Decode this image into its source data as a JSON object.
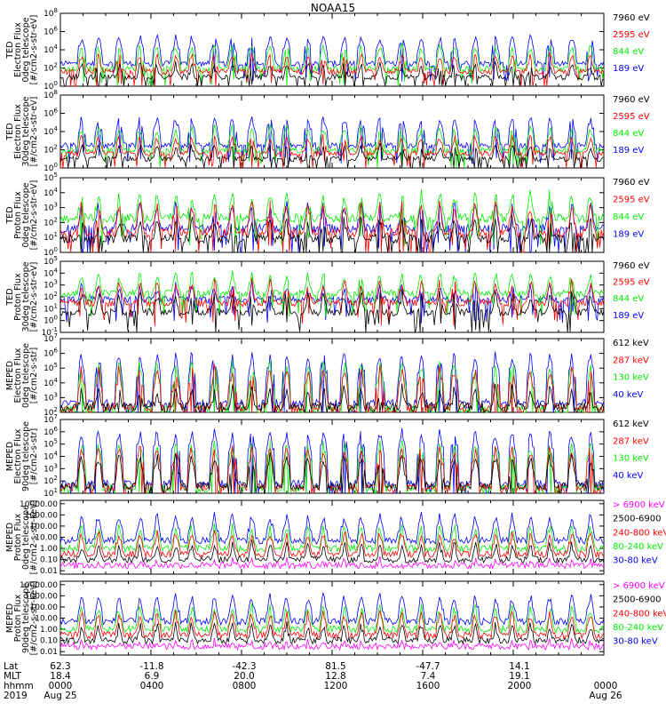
{
  "title": "NOAA15",
  "colors": {
    "black": "#000000",
    "red": "#ff0000",
    "green": "#00ee00",
    "blue": "#0000ff",
    "magenta": "#ff00ff"
  },
  "chart_data": [
    {
      "type": "line",
      "scale": "log",
      "ylabel": [
        "TED",
        "Electron Flux",
        "0deg telescope",
        "[#/cm2-s-str-eV]"
      ],
      "yticks": [
        {
          "v": 1,
          "label": "10^0"
        },
        {
          "v": 100,
          "label": "10^2"
        },
        {
          "v": 10000,
          "label": "10^4"
        },
        {
          "v": 1000000,
          "label": "10^6"
        },
        {
          "v": 100000000,
          "label": "10^8"
        }
      ],
      "ylim": [
        1,
        100000000
      ],
      "series": [
        {
          "name": "7960 eV",
          "color": "black",
          "base": 10,
          "peak": 300
        },
        {
          "name": "2595 eV",
          "color": "red",
          "base": 40,
          "peak": 3000
        },
        {
          "name": "844 eV",
          "color": "green",
          "base": 80,
          "peak": 30000
        },
        {
          "name": "189 eV",
          "color": "blue",
          "base": 300,
          "peak": 300000
        }
      ]
    },
    {
      "type": "line",
      "scale": "log",
      "ylabel": [
        "TED",
        "Electron Flux",
        "30deg telescope",
        "[#/cm2-s-str-eV]"
      ],
      "yticks": [
        {
          "v": 1,
          "label": "10^0"
        },
        {
          "v": 100,
          "label": "10^2"
        },
        {
          "v": 10000,
          "label": "10^4"
        },
        {
          "v": 1000000,
          "label": "10^6"
        },
        {
          "v": 100000000,
          "label": "10^8"
        }
      ],
      "ylim": [
        1,
        100000000
      ],
      "series": [
        {
          "name": "7960 eV",
          "color": "black",
          "base": 10,
          "peak": 300
        },
        {
          "name": "2595 eV",
          "color": "red",
          "base": 40,
          "peak": 3000
        },
        {
          "name": "844 eV",
          "color": "green",
          "base": 80,
          "peak": 30000
        },
        {
          "name": "189 eV",
          "color": "blue",
          "base": 300,
          "peak": 300000
        }
      ]
    },
    {
      "type": "line",
      "scale": "log",
      "ylabel": [
        "TED",
        "Proton Flux",
        "0deg telescope",
        "[#/cm2-s-str-eV]"
      ],
      "yticks": [
        {
          "v": 1,
          "label": "10^0"
        },
        {
          "v": 10,
          "label": "10^1"
        },
        {
          "v": 100,
          "label": "10^2"
        },
        {
          "v": 1000,
          "label": "10^3"
        },
        {
          "v": 10000,
          "label": "10^4"
        },
        {
          "v": 100000,
          "label": "10^5"
        }
      ],
      "ylim": [
        1,
        100000
      ],
      "series": [
        {
          "name": "7960 eV",
          "color": "black",
          "base": 8,
          "peak": 200
        },
        {
          "name": "2595 eV",
          "color": "red",
          "base": 20,
          "peak": 2000
        },
        {
          "name": "844 eV",
          "color": "green",
          "base": 200,
          "peak": 10000
        },
        {
          "name": "189 eV",
          "color": "blue",
          "base": 40,
          "peak": 2000
        }
      ]
    },
    {
      "type": "line",
      "scale": "log",
      "ylabel": [
        "TED",
        "Proton Flux",
        "30deg telescope",
        "[#/cm2-s-str-eV]"
      ],
      "yticks": [
        {
          "v": 0.1,
          "label": "10^-1"
        },
        {
          "v": 1,
          "label": "10^0"
        },
        {
          "v": 10,
          "label": "10^1"
        },
        {
          "v": 100,
          "label": "10^2"
        },
        {
          "v": 1000,
          "label": "10^3"
        },
        {
          "v": 10000,
          "label": "10^4"
        },
        {
          "v": 100000,
          "label": "10^5"
        }
      ],
      "ylim": [
        0.1,
        100000
      ],
      "series": [
        {
          "name": "7960 eV",
          "color": "black",
          "base": 5,
          "peak": 200
        },
        {
          "name": "2595 eV",
          "color": "red",
          "base": 30,
          "peak": 2000
        },
        {
          "name": "844 eV",
          "color": "green",
          "base": 200,
          "peak": 10000
        },
        {
          "name": "189 eV",
          "color": "blue",
          "base": 60,
          "peak": 1000
        }
      ]
    },
    {
      "type": "line",
      "scale": "log",
      "ylabel": [
        "MEPED",
        "Electron Flux",
        "0deg telescope",
        "[#/cm2-s-str]"
      ],
      "yticks": [
        {
          "v": 100,
          "label": "10^2"
        },
        {
          "v": 1000,
          "label": "10^3"
        },
        {
          "v": 10000,
          "label": "10^4"
        },
        {
          "v": 100000,
          "label": "10^5"
        },
        {
          "v": 1000000,
          "label": "10^6"
        },
        {
          "v": 10000000,
          "label": "10^7"
        }
      ],
      "ylim": [
        100,
        10000000
      ],
      "series": [
        {
          "name": "612 keV",
          "color": "black",
          "base": 250,
          "peak": 5000
        },
        {
          "name": "287 keV",
          "color": "red",
          "base": 200,
          "peak": 100000
        },
        {
          "name": "130 keV",
          "color": "green",
          "base": 150,
          "peak": 200000
        },
        {
          "name": "40 keV",
          "color": "blue",
          "base": 400,
          "peak": 1000000
        }
      ]
    },
    {
      "type": "line",
      "scale": "log",
      "ylabel": [
        "MEPED",
        "Electron Flux",
        "90deg telescope",
        "[#/cm2-s-str]"
      ],
      "yticks": [
        {
          "v": 10,
          "label": "10^1"
        },
        {
          "v": 100,
          "label": "10^2"
        },
        {
          "v": 1000,
          "label": "10^3"
        },
        {
          "v": 10000,
          "label": "10^4"
        },
        {
          "v": 100000,
          "label": "10^5"
        },
        {
          "v": 1000000,
          "label": "10^6"
        },
        {
          "v": 10000000,
          "label": "10^7"
        }
      ],
      "ylim": [
        10,
        10000000
      ],
      "series": [
        {
          "name": "612 keV",
          "color": "black",
          "base": 40,
          "peak": 10000
        },
        {
          "name": "287 keV",
          "color": "red",
          "base": 30,
          "peak": 50000
        },
        {
          "name": "130 keV",
          "color": "green",
          "base": 25,
          "peak": 100000
        },
        {
          "name": "40 keV",
          "color": "blue",
          "base": 60,
          "peak": 1000000
        }
      ]
    },
    {
      "type": "line",
      "scale": "log",
      "ylabel": [
        "MEPED",
        "Proton Flux",
        "0deg telescope",
        "[#/cm2-s-str-keV]"
      ],
      "yticks": [
        {
          "v": 0.01,
          "label": "0.01"
        },
        {
          "v": 0.1,
          "label": "0.10"
        },
        {
          "v": 1,
          "label": "1.00"
        },
        {
          "v": 10,
          "label": "10.00"
        },
        {
          "v": 100,
          "label": "100.00"
        },
        {
          "v": 1000,
          "label": "1000.00"
        },
        {
          "v": 10000,
          "label": "10000.00"
        }
      ],
      "ylim": [
        0.005,
        20000
      ],
      "series": [
        {
          "name": "> 6900 keV",
          "color": "magenta",
          "base": 0.03,
          "peak": 0.1
        },
        {
          "name": "2500-6900",
          "color": "black",
          "base": 0.1,
          "peak": 3
        },
        {
          "name": "240-800 keV",
          "color": "red",
          "base": 0.3,
          "peak": 30
        },
        {
          "name": "80-240 keV",
          "color": "green",
          "base": 1,
          "peak": 100
        },
        {
          "name": "30-80 keV",
          "color": "blue",
          "base": 5,
          "peak": 1000
        }
      ]
    },
    {
      "type": "line",
      "scale": "log",
      "ylabel": [
        "MEPED",
        "Proton Flux",
        "90deg telescope",
        "[#/cm2-s-str-keV]"
      ],
      "yticks": [
        {
          "v": 0.01,
          "label": "0.01"
        },
        {
          "v": 0.1,
          "label": "0.10"
        },
        {
          "v": 1,
          "label": "1.00"
        },
        {
          "v": 10,
          "label": "10.00"
        },
        {
          "v": 100,
          "label": "100.00"
        },
        {
          "v": 1000,
          "label": "1000.00"
        },
        {
          "v": 10000,
          "label": "10000.00"
        }
      ],
      "ylim": [
        0.005,
        20000
      ],
      "series": [
        {
          "name": "> 6900 keV",
          "color": "magenta",
          "base": 0.03,
          "peak": 0.1
        },
        {
          "name": "2500-6900",
          "color": "black",
          "base": 0.1,
          "peak": 3
        },
        {
          "name": "240-800 keV",
          "color": "red",
          "base": 0.3,
          "peak": 30
        },
        {
          "name": "80-240 keV",
          "color": "green",
          "base": 1,
          "peak": 100
        },
        {
          "name": "30-80 keV",
          "color": "blue",
          "base": 5,
          "peak": 1000
        }
      ]
    }
  ],
  "footer": {
    "row_labels": [
      "Lat",
      "MLT",
      "hhmm",
      "2019"
    ],
    "columns": [
      {
        "lat": "62.3",
        "mlt": "18.4",
        "hhmm": "0000",
        "date": "Aug 25"
      },
      {
        "lat": "-11.8",
        "mlt": "6.9",
        "hhmm": "0400",
        "date": ""
      },
      {
        "lat": "-42.3",
        "mlt": "20.0",
        "hhmm": "0800",
        "date": ""
      },
      {
        "lat": "81.5",
        "mlt": "12.8",
        "hhmm": "1200",
        "date": ""
      },
      {
        "lat": "-47.7",
        "mlt": "7.4",
        "hhmm": "1600",
        "date": ""
      },
      {
        "lat": "14.1",
        "mlt": "19.1",
        "hhmm": "2000",
        "date": ""
      },
      {
        "lat": "",
        "mlt": "",
        "hhmm": "0000",
        "date": "Aug 26"
      }
    ]
  }
}
